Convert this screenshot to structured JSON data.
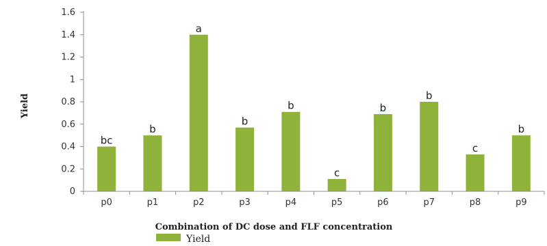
{
  "chart_data": {
    "type": "bar",
    "categories": [
      "p0",
      "p1",
      "p2",
      "p3",
      "p4",
      "p5",
      "p6",
      "p7",
      "p8",
      "p9"
    ],
    "series": [
      {
        "name": "Yield",
        "values": [
          0.4,
          0.5,
          1.4,
          0.57,
          0.71,
          0.11,
          0.69,
          0.8,
          0.33,
          0.5
        ],
        "labels": [
          "bc",
          "b",
          "a",
          "b",
          "b",
          "c",
          "b",
          "b",
          "c",
          "b"
        ]
      }
    ],
    "xlabel": "Combination of DC dose and FLF concentration",
    "ylabel": "Yield",
    "ylim": [
      0,
      1.6
    ],
    "yticks": [
      "0",
      "0.2",
      "0.4",
      "0.6",
      "0.8",
      "1",
      "1.2",
      "1.4",
      "1.6"
    ],
    "grid": false,
    "legend": "bottom-left",
    "color": "#8fb23b"
  }
}
